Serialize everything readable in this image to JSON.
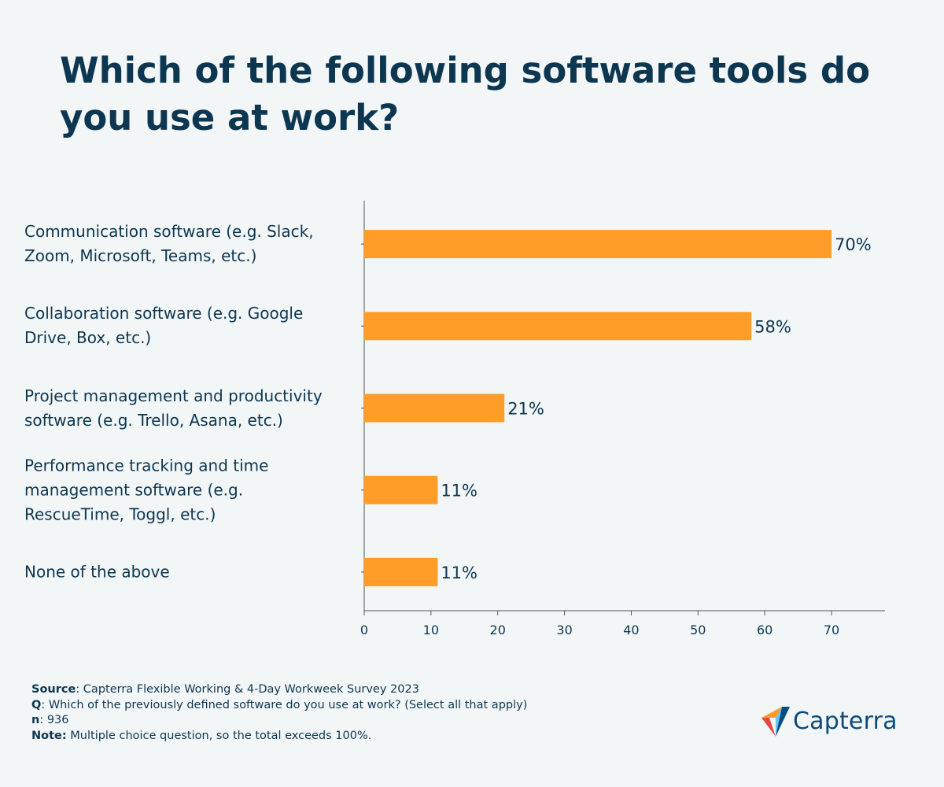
{
  "title": "Which of the following software tools do you use at work?",
  "chart_data": {
    "type": "bar",
    "orientation": "horizontal",
    "categories": [
      "Communication software (e.g. Slack, Zoom, Microsoft, Teams, etc.)",
      "Collaboration software (e.g. Google Drive, Box, etc.)",
      "Project management and productivity software (e.g. Trello, Asana, etc.)",
      "Performance tracking and time management software (e.g. RescueTime, Toggl, etc.)",
      "None of the above"
    ],
    "values": [
      70,
      58,
      21,
      11,
      11
    ],
    "value_labels": [
      "70%",
      "58%",
      "21%",
      "11%",
      "11%"
    ],
    "xlim": [
      0,
      78
    ],
    "xticks": [
      0,
      10,
      20,
      30,
      40,
      50,
      60,
      70
    ],
    "grid": false,
    "bar_color": "#ff9d28",
    "axis_color": "#555555"
  },
  "footer": {
    "source_label": "Source",
    "source_text": ": Capterra Flexible Working & 4-Day Workweek Survey 2023",
    "q_label": "Q",
    "q_text": ": Which of the previously defined software do you use at work? (Select all that apply)",
    "n_label": "n",
    "n_text": ": 936",
    "note_label": "Note:",
    "note_text": " Multiple choice question, so the total exceeds 100%."
  },
  "logo": {
    "text": "Capterra",
    "colors": [
      "#ff9d28",
      "#68c5ed",
      "#044d80",
      "#e54747"
    ]
  }
}
